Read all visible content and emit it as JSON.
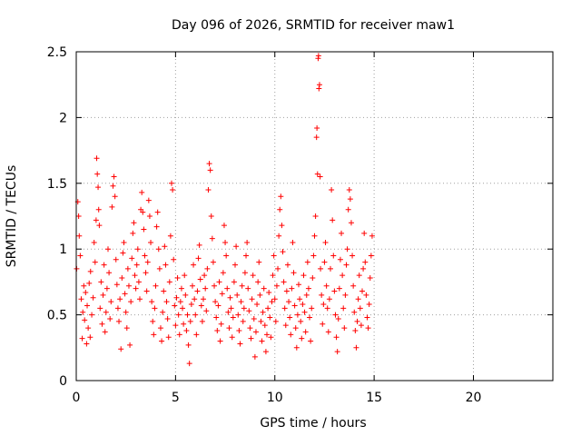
{
  "chart_data": {
    "type": "scatter",
    "title": "Day 096 of 2026, SRMTID for receiver maw1",
    "xlabel": "GPS time / hours",
    "ylabel": "SRMTID / TECUs",
    "xlim": [
      0,
      24
    ],
    "ylim": [
      0,
      2.5
    ],
    "x_ticks": [
      "0",
      "5",
      "10",
      "15",
      "20"
    ],
    "x_tick_values": [
      0,
      5,
      10,
      15,
      20
    ],
    "y_ticks": [
      "0",
      "0.5",
      "1",
      "1.5",
      "2",
      "2.5"
    ],
    "y_tick_values": [
      0,
      0.5,
      1,
      1.5,
      2,
      2.5
    ],
    "grid": true,
    "legend": "none",
    "marker": "+",
    "color": "#ff0000",
    "series": [
      {
        "name": "SRMTID",
        "points": [
          [
            0.02,
            0.85
          ],
          [
            0.08,
            1.36
          ],
          [
            0.12,
            1.25
          ],
          [
            0.15,
            1.1
          ],
          [
            0.2,
            0.95
          ],
          [
            0.25,
            0.62
          ],
          [
            0.3,
            0.32
          ],
          [
            0.33,
            0.52
          ],
          [
            0.38,
            0.72
          ],
          [
            0.42,
            0.46
          ],
          [
            0.47,
            0.67
          ],
          [
            0.52,
            0.28
          ],
          [
            0.55,
            0.57
          ],
          [
            0.6,
            0.4
          ],
          [
            0.65,
            0.74
          ],
          [
            0.7,
            0.33
          ],
          [
            0.72,
            0.83
          ],
          [
            0.78,
            0.5
          ],
          [
            0.85,
            0.63
          ],
          [
            0.9,
            1.05
          ],
          [
            0.95,
            0.9
          ],
          [
            1.0,
            1.22
          ],
          [
            1.03,
            1.69
          ],
          [
            1.06,
            1.57
          ],
          [
            1.1,
            1.47
          ],
          [
            1.13,
            1.3
          ],
          [
            1.16,
            1.18
          ],
          [
            1.2,
            0.55
          ],
          [
            1.25,
            0.75
          ],
          [
            1.3,
            0.43
          ],
          [
            1.35,
            0.65
          ],
          [
            1.4,
            0.88
          ],
          [
            1.45,
            0.37
          ],
          [
            1.5,
            0.52
          ],
          [
            1.55,
            0.7
          ],
          [
            1.6,
            1.0
          ],
          [
            1.65,
            0.82
          ],
          [
            1.7,
            0.47
          ],
          [
            1.75,
            0.6
          ],
          [
            1.8,
            1.32
          ],
          [
            1.85,
            1.48
          ],
          [
            1.9,
            1.55
          ],
          [
            1.95,
            1.4
          ],
          [
            2.0,
            0.92
          ],
          [
            2.05,
            0.73
          ],
          [
            2.1,
            0.55
          ],
          [
            2.15,
            0.45
          ],
          [
            2.2,
            0.62
          ],
          [
            2.25,
            0.24
          ],
          [
            2.3,
            0.78
          ],
          [
            2.35,
            0.97
          ],
          [
            2.4,
            1.05
          ],
          [
            2.45,
            0.66
          ],
          [
            2.5,
            0.52
          ],
          [
            2.55,
            0.4
          ],
          [
            2.6,
            0.85
          ],
          [
            2.65,
            0.72
          ],
          [
            2.7,
            0.27
          ],
          [
            2.75,
            0.6
          ],
          [
            2.8,
            0.93
          ],
          [
            2.85,
            1.12
          ],
          [
            2.9,
            1.2
          ],
          [
            2.95,
            0.8
          ],
          [
            3.0,
            0.7
          ],
          [
            3.05,
            0.88
          ],
          [
            3.1,
            1.0
          ],
          [
            3.15,
            0.75
          ],
          [
            3.2,
            0.62
          ],
          [
            3.25,
            1.3
          ],
          [
            3.3,
            1.43
          ],
          [
            3.35,
            1.28
          ],
          [
            3.4,
            1.15
          ],
          [
            3.45,
            0.95
          ],
          [
            3.5,
            0.82
          ],
          [
            3.55,
            0.68
          ],
          [
            3.6,
            0.9
          ],
          [
            3.65,
            1.37
          ],
          [
            3.7,
            1.25
          ],
          [
            3.75,
            1.05
          ],
          [
            3.8,
            0.6
          ],
          [
            3.85,
            0.45
          ],
          [
            3.9,
            0.35
          ],
          [
            3.95,
            0.55
          ],
          [
            4.0,
            0.72
          ],
          [
            4.05,
            1.17
          ],
          [
            4.1,
            1.28
          ],
          [
            4.15,
            1.0
          ],
          [
            4.2,
            0.85
          ],
          [
            4.25,
            0.4
          ],
          [
            4.3,
            0.3
          ],
          [
            4.35,
            0.52
          ],
          [
            4.4,
            0.68
          ],
          [
            4.45,
            1.02
          ],
          [
            4.5,
            0.88
          ],
          [
            4.55,
            0.6
          ],
          [
            4.6,
            0.47
          ],
          [
            4.65,
            0.33
          ],
          [
            4.7,
            0.75
          ],
          [
            4.75,
            1.1
          ],
          [
            4.8,
            1.5
          ],
          [
            4.85,
            1.45
          ],
          [
            4.9,
            0.92
          ],
          [
            4.95,
            0.57
          ],
          [
            5.0,
            0.42
          ],
          [
            5.05,
            0.63
          ],
          [
            5.1,
            0.78
          ],
          [
            5.15,
            0.5
          ],
          [
            5.2,
            0.35
          ],
          [
            5.25,
            0.6
          ],
          [
            5.3,
            0.7
          ],
          [
            5.35,
            0.55
          ],
          [
            5.4,
            0.43
          ],
          [
            5.45,
            0.8
          ],
          [
            5.5,
            0.65
          ],
          [
            5.55,
            0.38
          ],
          [
            5.6,
            0.5
          ],
          [
            5.65,
            0.27
          ],
          [
            5.7,
            0.13
          ],
          [
            5.75,
            0.45
          ],
          [
            5.8,
            0.58
          ],
          [
            5.85,
            0.72
          ],
          [
            5.9,
            0.88
          ],
          [
            5.95,
            0.62
          ],
          [
            6.0,
            0.5
          ],
          [
            6.05,
            0.35
          ],
          [
            6.1,
            0.68
          ],
          [
            6.15,
            0.93
          ],
          [
            6.2,
            1.03
          ],
          [
            6.25,
            0.77
          ],
          [
            6.3,
            0.57
          ],
          [
            6.35,
            0.45
          ],
          [
            6.4,
            0.62
          ],
          [
            6.45,
            0.8
          ],
          [
            6.5,
            0.7
          ],
          [
            6.55,
            0.53
          ],
          [
            6.6,
            0.85
          ],
          [
            6.65,
            1.45
          ],
          [
            6.7,
            1.65
          ],
          [
            6.75,
            1.6
          ],
          [
            6.8,
            1.25
          ],
          [
            6.85,
            1.08
          ],
          [
            6.9,
            0.9
          ],
          [
            6.95,
            0.72
          ],
          [
            7.0,
            0.6
          ],
          [
            7.05,
            0.48
          ],
          [
            7.1,
            0.38
          ],
          [
            7.15,
            0.57
          ],
          [
            7.2,
            0.75
          ],
          [
            7.25,
            0.3
          ],
          [
            7.3,
            0.43
          ],
          [
            7.35,
            0.66
          ],
          [
            7.4,
            0.82
          ],
          [
            7.45,
            1.18
          ],
          [
            7.5,
            1.05
          ],
          [
            7.55,
            0.95
          ],
          [
            7.6,
            0.7
          ],
          [
            7.65,
            0.52
          ],
          [
            7.7,
            0.4
          ],
          [
            7.75,
            0.63
          ],
          [
            7.8,
            0.55
          ],
          [
            7.85,
            0.33
          ],
          [
            7.9,
            0.48
          ],
          [
            7.95,
            0.75
          ],
          [
            8.0,
            0.88
          ],
          [
            8.05,
            1.02
          ],
          [
            8.1,
            0.65
          ],
          [
            8.15,
            0.5
          ],
          [
            8.2,
            0.38
          ],
          [
            8.25,
            0.28
          ],
          [
            8.3,
            0.6
          ],
          [
            8.35,
            0.72
          ],
          [
            8.4,
            0.45
          ],
          [
            8.45,
            0.55
          ],
          [
            8.5,
            0.82
          ],
          [
            8.55,
            0.95
          ],
          [
            8.6,
            1.05
          ],
          [
            8.65,
            0.7
          ],
          [
            8.7,
            0.53
          ],
          [
            8.75,
            0.4
          ],
          [
            8.8,
            0.32
          ],
          [
            8.85,
            0.62
          ],
          [
            8.9,
            0.8
          ],
          [
            8.95,
            0.47
          ],
          [
            9.0,
            0.18
          ],
          [
            9.05,
            0.37
          ],
          [
            9.1,
            0.58
          ],
          [
            9.15,
            0.75
          ],
          [
            9.2,
            0.9
          ],
          [
            9.25,
            0.65
          ],
          [
            9.3,
            0.45
          ],
          [
            9.35,
            0.3
          ],
          [
            9.4,
            0.52
          ],
          [
            9.45,
            0.7
          ],
          [
            9.5,
            0.42
          ],
          [
            9.55,
            0.22
          ],
          [
            9.6,
            0.35
          ],
          [
            9.65,
            0.55
          ],
          [
            9.7,
            0.67
          ],
          [
            9.75,
            0.48
          ],
          [
            9.8,
            0.33
          ],
          [
            9.85,
            0.6
          ],
          [
            9.9,
            0.8
          ],
          [
            9.95,
            0.95
          ],
          [
            10.0,
            0.62
          ],
          [
            10.05,
            0.45
          ],
          [
            10.1,
            0.72
          ],
          [
            10.15,
            0.85
          ],
          [
            10.2,
            1.1
          ],
          [
            10.25,
            1.3
          ],
          [
            10.3,
            1.4
          ],
          [
            10.35,
            1.18
          ],
          [
            10.4,
            0.98
          ],
          [
            10.45,
            0.75
          ],
          [
            10.5,
            0.55
          ],
          [
            10.55,
            0.42
          ],
          [
            10.6,
            0.68
          ],
          [
            10.65,
            0.88
          ],
          [
            10.7,
            0.6
          ],
          [
            10.75,
            0.48
          ],
          [
            10.8,
            0.35
          ],
          [
            10.85,
            0.7
          ],
          [
            10.9,
            1.05
          ],
          [
            10.95,
            0.82
          ],
          [
            11.0,
            0.57
          ],
          [
            11.05,
            0.4
          ],
          [
            11.1,
            0.25
          ],
          [
            11.15,
            0.5
          ],
          [
            11.2,
            0.73
          ],
          [
            11.25,
            0.62
          ],
          [
            11.3,
            0.45
          ],
          [
            11.35,
            0.32
          ],
          [
            11.4,
            0.58
          ],
          [
            11.45,
            0.8
          ],
          [
            11.5,
            0.52
          ],
          [
            11.55,
            0.37
          ],
          [
            11.6,
            0.65
          ],
          [
            11.65,
            0.9
          ],
          [
            11.7,
            0.7
          ],
          [
            11.75,
            0.48
          ],
          [
            11.8,
            0.3
          ],
          [
            11.85,
            0.55
          ],
          [
            11.9,
            0.78
          ],
          [
            11.95,
            0.95
          ],
          [
            12.0,
            1.1
          ],
          [
            12.05,
            1.25
          ],
          [
            12.1,
            1.85
          ],
          [
            12.12,
            1.92
          ],
          [
            12.15,
            1.57
          ],
          [
            12.18,
            2.45
          ],
          [
            12.2,
            2.47
          ],
          [
            12.22,
            2.22
          ],
          [
            12.25,
            2.25
          ],
          [
            12.28,
            1.55
          ],
          [
            12.3,
            0.85
          ],
          [
            12.35,
            0.65
          ],
          [
            12.4,
            0.43
          ],
          [
            12.45,
            0.58
          ],
          [
            12.5,
            0.9
          ],
          [
            12.55,
            1.05
          ],
          [
            12.6,
            0.72
          ],
          [
            12.65,
            0.55
          ],
          [
            12.7,
            0.37
          ],
          [
            12.75,
            0.62
          ],
          [
            12.8,
            0.85
          ],
          [
            12.85,
            1.45
          ],
          [
            12.9,
            1.22
          ],
          [
            12.95,
            0.95
          ],
          [
            13.0,
            0.68
          ],
          [
            13.05,
            0.5
          ],
          [
            13.1,
            0.33
          ],
          [
            13.15,
            0.22
          ],
          [
            13.2,
            0.47
          ],
          [
            13.25,
            0.7
          ],
          [
            13.3,
            0.92
          ],
          [
            13.35,
            1.12
          ],
          [
            13.4,
            0.8
          ],
          [
            13.45,
            0.55
          ],
          [
            13.5,
            0.4
          ],
          [
            13.55,
            0.65
          ],
          [
            13.6,
            0.88
          ],
          [
            13.65,
            1.0
          ],
          [
            13.7,
            1.3
          ],
          [
            13.75,
            1.45
          ],
          [
            13.8,
            1.38
          ],
          [
            13.85,
            1.2
          ],
          [
            13.9,
            0.95
          ],
          [
            13.95,
            0.72
          ],
          [
            14.0,
            0.52
          ],
          [
            14.05,
            0.38
          ],
          [
            14.1,
            0.25
          ],
          [
            14.15,
            0.45
          ],
          [
            14.2,
            0.62
          ],
          [
            14.25,
            0.8
          ],
          [
            14.3,
            0.55
          ],
          [
            14.35,
            0.42
          ],
          [
            14.4,
            0.68
          ],
          [
            14.45,
            0.85
          ],
          [
            14.5,
            1.12
          ],
          [
            14.55,
            0.9
          ],
          [
            14.6,
            0.65
          ],
          [
            14.65,
            0.48
          ],
          [
            14.7,
            0.4
          ],
          [
            14.75,
            0.58
          ],
          [
            14.8,
            0.78
          ],
          [
            14.85,
            0.95
          ],
          [
            14.9,
            1.1
          ]
        ]
      }
    ]
  }
}
